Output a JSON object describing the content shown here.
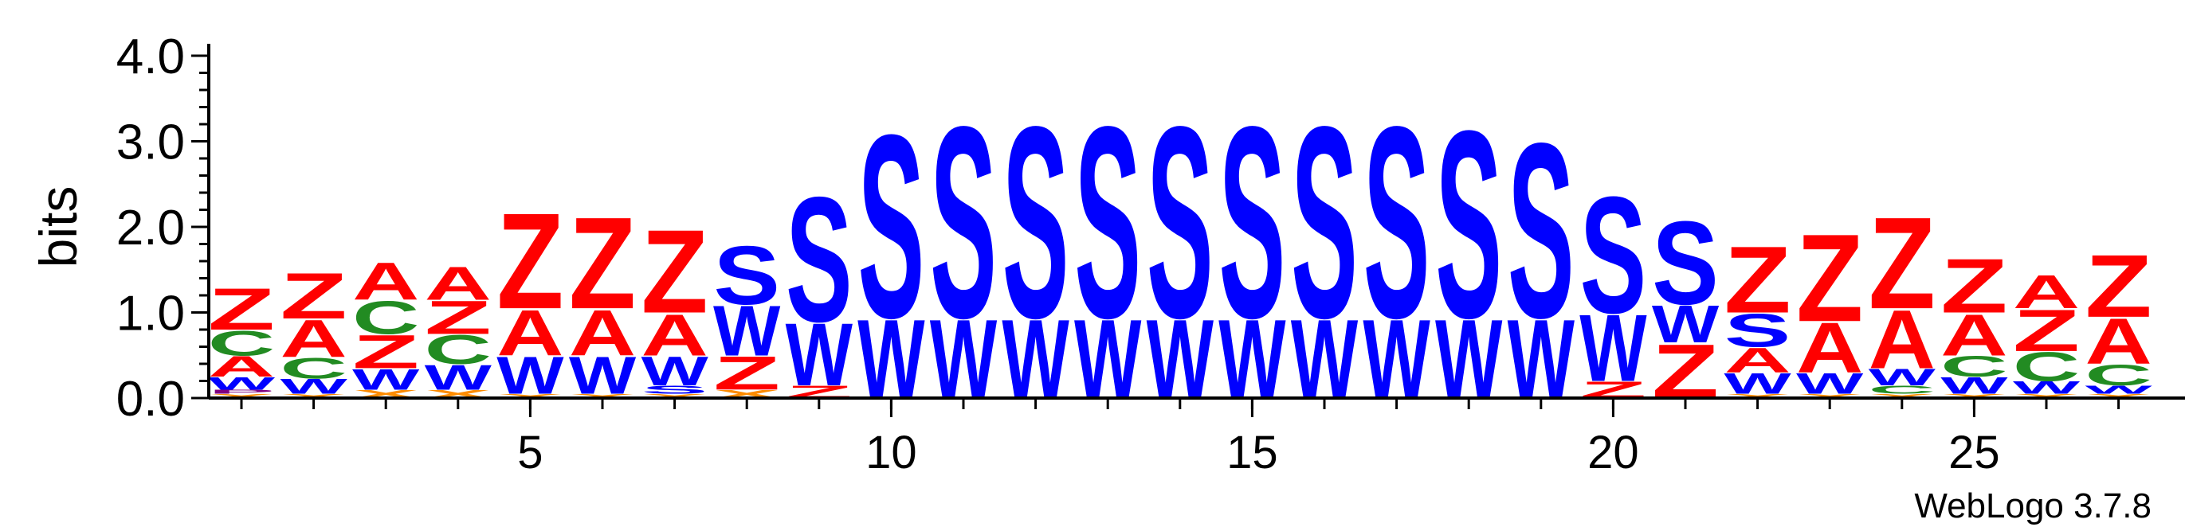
{
  "chart_data": {
    "type": "sequence-logo",
    "ylabel": "bits",
    "ylim": [
      0,
      4
    ],
    "y_ticks": [
      0.0,
      1.0,
      2.0,
      3.0,
      4.0
    ],
    "y_tick_labels": [
      "0.0",
      "1.0",
      "2.0",
      "3.0",
      "4.0"
    ],
    "x_ticks": [
      5,
      10,
      15,
      20,
      25
    ],
    "x_tick_labels": [
      "5",
      "10",
      "15",
      "20",
      "25"
    ],
    "positions": 27,
    "credit": "WebLogo 3.7.8",
    "colors": {
      "Z": "#ff0000",
      "A": "#ff0000",
      "C": "#228b22",
      "W": "#0000ff",
      "S": "#0000ff",
      "X": "#ff8c00",
      "P": "#800080"
    },
    "stacks": [
      {
        "pos": 1,
        "letters": [
          [
            "X",
            0.05
          ],
          [
            "P",
            0.05
          ],
          [
            "W",
            0.15
          ],
          [
            "A",
            0.25
          ],
          [
            "C",
            0.3
          ],
          [
            "Z",
            0.5
          ]
        ]
      },
      {
        "pos": 2,
        "letters": [
          [
            "X",
            0.05
          ],
          [
            "W",
            0.18
          ],
          [
            "C",
            0.25
          ],
          [
            "A",
            0.45
          ],
          [
            "Z",
            0.55
          ]
        ]
      },
      {
        "pos": 3,
        "letters": [
          [
            "X",
            0.1
          ],
          [
            "W",
            0.25
          ],
          [
            "Z",
            0.4
          ],
          [
            "C",
            0.4
          ],
          [
            "A",
            0.45
          ]
        ]
      },
      {
        "pos": 4,
        "letters": [
          [
            "X",
            0.1
          ],
          [
            "W",
            0.3
          ],
          [
            "C",
            0.35
          ],
          [
            "Z",
            0.4
          ],
          [
            "A",
            0.4
          ]
        ]
      },
      {
        "pos": 5,
        "letters": [
          [
            "X",
            0.05
          ],
          [
            "W",
            0.45
          ],
          [
            "A",
            0.55
          ],
          [
            "Z",
            1.15
          ]
        ]
      },
      {
        "pos": 6,
        "letters": [
          [
            "X",
            0.05
          ],
          [
            "W",
            0.45
          ],
          [
            "A",
            0.55
          ],
          [
            "Z",
            1.1
          ]
        ]
      },
      {
        "pos": 7,
        "letters": [
          [
            "X",
            0.05
          ],
          [
            "S",
            0.1
          ],
          [
            "W",
            0.35
          ],
          [
            "A",
            0.5
          ],
          [
            "Z",
            1.0
          ]
        ]
      },
      {
        "pos": 8,
        "letters": [
          [
            "X",
            0.1
          ],
          [
            "Z",
            0.4
          ],
          [
            "W",
            0.6
          ],
          [
            "S",
            0.7
          ]
        ]
      },
      {
        "pos": 9,
        "letters": [
          [
            "Z",
            0.15
          ],
          [
            "W",
            0.75
          ],
          [
            "S",
            1.5
          ]
        ]
      },
      {
        "pos": 10,
        "letters": [
          [
            "W",
            0.95
          ],
          [
            "S",
            2.2
          ]
        ]
      },
      {
        "pos": 11,
        "letters": [
          [
            "W",
            0.95
          ],
          [
            "S",
            2.3
          ]
        ]
      },
      {
        "pos": 12,
        "letters": [
          [
            "W",
            0.95
          ],
          [
            "S",
            2.3
          ]
        ]
      },
      {
        "pos": 13,
        "letters": [
          [
            "W",
            0.95
          ],
          [
            "S",
            2.3
          ]
        ]
      },
      {
        "pos": 14,
        "letters": [
          [
            "W",
            0.95
          ],
          [
            "S",
            2.3
          ]
        ]
      },
      {
        "pos": 15,
        "letters": [
          [
            "W",
            0.95
          ],
          [
            "S",
            2.3
          ]
        ]
      },
      {
        "pos": 16,
        "letters": [
          [
            "W",
            0.95
          ],
          [
            "S",
            2.3
          ]
        ]
      },
      {
        "pos": 17,
        "letters": [
          [
            "W",
            0.95
          ],
          [
            "S",
            2.3
          ]
        ]
      },
      {
        "pos": 18,
        "letters": [
          [
            "W",
            0.95
          ],
          [
            "S",
            2.25
          ]
        ]
      },
      {
        "pos": 19,
        "letters": [
          [
            "W",
            0.95
          ],
          [
            "S",
            2.1
          ]
        ]
      },
      {
        "pos": 20,
        "letters": [
          [
            "Z",
            0.2
          ],
          [
            "W",
            0.8
          ],
          [
            "S",
            1.4
          ]
        ]
      },
      {
        "pos": 21,
        "letters": [
          [
            "Z",
            0.65
          ],
          [
            "W",
            0.45
          ],
          [
            "S",
            1.0
          ]
        ]
      },
      {
        "pos": 22,
        "letters": [
          [
            "X",
            0.05
          ],
          [
            "W",
            0.25
          ],
          [
            "A",
            0.3
          ],
          [
            "S",
            0.4
          ],
          [
            "Z",
            0.8
          ]
        ]
      },
      {
        "pos": 23,
        "letters": [
          [
            "X",
            0.05
          ],
          [
            "W",
            0.25
          ],
          [
            "A",
            0.6
          ],
          [
            "Z",
            1.05
          ]
        ]
      },
      {
        "pos": 24,
        "letters": [
          [
            "X",
            0.05
          ],
          [
            "C",
            0.1
          ],
          [
            "W",
            0.2
          ],
          [
            "A",
            0.7
          ],
          [
            "Z",
            1.1
          ]
        ]
      },
      {
        "pos": 25,
        "letters": [
          [
            "X",
            0.05
          ],
          [
            "W",
            0.2
          ],
          [
            "C",
            0.25
          ],
          [
            "A",
            0.5
          ],
          [
            "Z",
            0.65
          ]
        ]
      },
      {
        "pos": 26,
        "letters": [
          [
            "X",
            0.05
          ],
          [
            "W",
            0.15
          ],
          [
            "C",
            0.35
          ],
          [
            "Z",
            0.5
          ],
          [
            "A",
            0.4
          ]
        ]
      },
      {
        "pos": 27,
        "letters": [
          [
            "X",
            0.05
          ],
          [
            "W",
            0.1
          ],
          [
            "C",
            0.25
          ],
          [
            "A",
            0.55
          ],
          [
            "Z",
            0.75
          ]
        ]
      }
    ]
  }
}
